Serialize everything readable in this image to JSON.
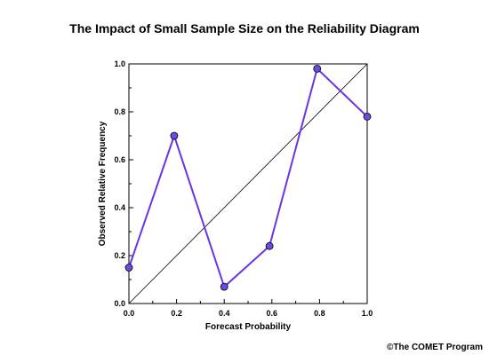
{
  "chart_data": {
    "type": "line",
    "title": "The Impact of Small Sample Size on the Reliability Diagram",
    "xlabel": "Forecast Probability",
    "ylabel": "Observed Relative Frequency",
    "xlim": [
      0.0,
      1.0
    ],
    "ylim": [
      0.0,
      1.0
    ],
    "x_ticks": [
      "0.0",
      "0.2",
      "0.4",
      "0.6",
      "0.8",
      "1.0"
    ],
    "y_ticks": [
      "0.0",
      "0.2",
      "0.4",
      "0.6",
      "0.8",
      "1.0"
    ],
    "grid": false,
    "reference_line": {
      "from": [
        0.0,
        0.0
      ],
      "to": [
        1.0,
        1.0
      ]
    },
    "series": [
      {
        "x": [
          0.0,
          0.19,
          0.4,
          0.59,
          0.79,
          1.0
        ],
        "y": [
          0.15,
          0.7,
          0.07,
          0.24,
          0.98,
          0.78
        ],
        "color": "#6a35e8",
        "marker_fill": "#6a4ce0"
      }
    ]
  },
  "credit": "©The COMET Program"
}
